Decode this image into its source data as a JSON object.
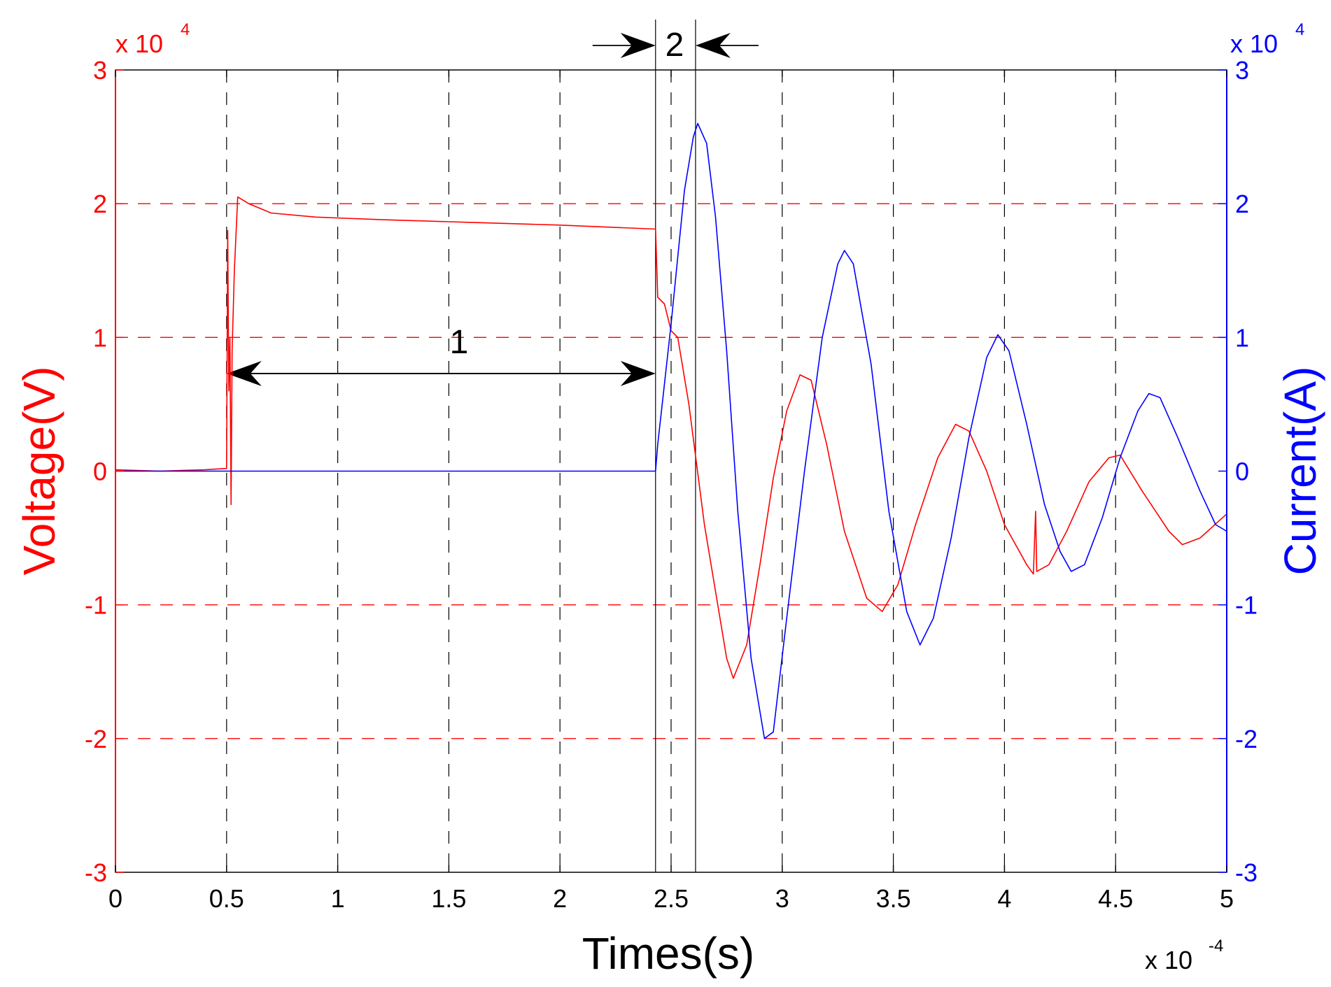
{
  "chart_data": {
    "type": "line",
    "title": "",
    "xlabel": "Times(s)",
    "y1label": "Voltage(V)",
    "y2label": "Current(A)",
    "x_multiplier": "x 10",
    "x_exponent": "-4",
    "y1_multiplier": "x 10",
    "y1_exponent": "4",
    "y2_multiplier": "x 10",
    "y2_exponent": "4",
    "xlim": [
      0,
      5
    ],
    "y1lim": [
      -3,
      3
    ],
    "y2lim": [
      -3,
      3
    ],
    "xticks": [
      {
        "v": 0,
        "label": "0"
      },
      {
        "v": 0.5,
        "label": "0.5"
      },
      {
        "v": 1,
        "label": "1"
      },
      {
        "v": 1.5,
        "label": "1.5"
      },
      {
        "v": 2,
        "label": "2"
      },
      {
        "v": 2.5,
        "label": "2.5"
      },
      {
        "v": 3,
        "label": "3"
      },
      {
        "v": 3.5,
        "label": "3.5"
      },
      {
        "v": 4,
        "label": "4"
      },
      {
        "v": 4.5,
        "label": "4.5"
      },
      {
        "v": 5,
        "label": "5"
      }
    ],
    "yticks": [
      {
        "v": -3,
        "label": "-3"
      },
      {
        "v": -2,
        "label": "-2"
      },
      {
        "v": -1,
        "label": "-1"
      },
      {
        "v": 0,
        "label": "0"
      },
      {
        "v": 1,
        "label": "1"
      },
      {
        "v": 2,
        "label": "2"
      },
      {
        "v": 3,
        "label": "3"
      }
    ],
    "grid": {
      "vertical_x": [
        0.5,
        1,
        1.5,
        2,
        2.5,
        3,
        3.5,
        4,
        4.5
      ],
      "horizontal_y": [
        -2,
        -1,
        1,
        2
      ]
    },
    "markers": {
      "vertical_lines_x": [
        2.43,
        2.61
      ],
      "arrow1": {
        "label": "1",
        "x_start": 0.5,
        "x_end": 2.43,
        "y": 0.73
      },
      "arrow2": {
        "label": "2",
        "x_left": 2.43,
        "x_right": 2.61
      }
    },
    "colors": {
      "voltage": "#ff0000",
      "current": "#0000ff",
      "annotation": "#000000",
      "grid": "#000000"
    },
    "series": [
      {
        "name": "Voltage(V)",
        "axis": "left",
        "points": [
          [
            0,
            0.01
          ],
          [
            0.2,
            0.0
          ],
          [
            0.4,
            0.01
          ],
          [
            0.5,
            0.02
          ],
          [
            0.505,
            1.8
          ],
          [
            0.51,
            0.6
          ],
          [
            0.515,
            1.0
          ],
          [
            0.52,
            -0.25
          ],
          [
            0.525,
            0.9
          ],
          [
            0.535,
            1.5
          ],
          [
            0.55,
            2.05
          ],
          [
            0.6,
            2.0
          ],
          [
            0.7,
            1.93
          ],
          [
            0.9,
            1.9
          ],
          [
            1.2,
            1.88
          ],
          [
            1.6,
            1.86
          ],
          [
            2.0,
            1.84
          ],
          [
            2.43,
            1.81
          ],
          [
            2.44,
            1.3
          ],
          [
            2.47,
            1.25
          ],
          [
            2.5,
            1.05
          ],
          [
            2.53,
            1.0
          ],
          [
            2.58,
            0.5
          ],
          [
            2.65,
            -0.4
          ],
          [
            2.7,
            -0.9
          ],
          [
            2.75,
            -1.4
          ],
          [
            2.78,
            -1.55
          ],
          [
            2.84,
            -1.3
          ],
          [
            2.9,
            -0.7
          ],
          [
            2.96,
            -0.05
          ],
          [
            3.02,
            0.45
          ],
          [
            3.08,
            0.72
          ],
          [
            3.13,
            0.68
          ],
          [
            3.2,
            0.2
          ],
          [
            3.28,
            -0.45
          ],
          [
            3.38,
            -0.95
          ],
          [
            3.45,
            -1.05
          ],
          [
            3.52,
            -0.85
          ],
          [
            3.6,
            -0.4
          ],
          [
            3.7,
            0.1
          ],
          [
            3.78,
            0.35
          ],
          [
            3.84,
            0.3
          ],
          [
            3.92,
            0.0
          ],
          [
            4.0,
            -0.4
          ],
          [
            4.1,
            -0.7
          ],
          [
            4.13,
            -0.77
          ],
          [
            4.14,
            -0.3
          ],
          [
            4.145,
            -0.75
          ],
          [
            4.2,
            -0.7
          ],
          [
            4.28,
            -0.45
          ],
          [
            4.38,
            -0.08
          ],
          [
            4.47,
            0.1
          ],
          [
            4.52,
            0.12
          ],
          [
            4.62,
            -0.15
          ],
          [
            4.74,
            -0.45
          ],
          [
            4.8,
            -0.55
          ],
          [
            4.88,
            -0.5
          ],
          [
            5.0,
            -0.32
          ]
        ]
      },
      {
        "name": "Current(A)",
        "axis": "right",
        "points": [
          [
            0,
            0.0
          ],
          [
            2.43,
            0.0
          ],
          [
            2.44,
            0.2
          ],
          [
            2.46,
            0.5
          ],
          [
            2.5,
            1.1
          ],
          [
            2.53,
            1.6
          ],
          [
            2.56,
            2.1
          ],
          [
            2.6,
            2.5
          ],
          [
            2.62,
            2.6
          ],
          [
            2.66,
            2.45
          ],
          [
            2.7,
            1.9
          ],
          [
            2.75,
            0.9
          ],
          [
            2.8,
            -0.3
          ],
          [
            2.86,
            -1.4
          ],
          [
            2.92,
            -2.0
          ],
          [
            2.96,
            -1.95
          ],
          [
            3.02,
            -1.1
          ],
          [
            3.1,
            0.0
          ],
          [
            3.18,
            1.0
          ],
          [
            3.25,
            1.55
          ],
          [
            3.28,
            1.65
          ],
          [
            3.32,
            1.55
          ],
          [
            3.4,
            0.8
          ],
          [
            3.48,
            -0.3
          ],
          [
            3.56,
            -1.05
          ],
          [
            3.62,
            -1.3
          ],
          [
            3.68,
            -1.1
          ],
          [
            3.76,
            -0.5
          ],
          [
            3.84,
            0.25
          ],
          [
            3.92,
            0.85
          ],
          [
            3.97,
            1.02
          ],
          [
            4.02,
            0.9
          ],
          [
            4.1,
            0.35
          ],
          [
            4.18,
            -0.25
          ],
          [
            4.25,
            -0.6
          ],
          [
            4.3,
            -0.75
          ],
          [
            4.36,
            -0.7
          ],
          [
            4.44,
            -0.35
          ],
          [
            4.52,
            0.1
          ],
          [
            4.6,
            0.45
          ],
          [
            4.65,
            0.58
          ],
          [
            4.7,
            0.55
          ],
          [
            4.78,
            0.25
          ],
          [
            4.88,
            -0.15
          ],
          [
            4.95,
            -0.4
          ],
          [
            5.0,
            -0.45
          ]
        ]
      }
    ]
  }
}
